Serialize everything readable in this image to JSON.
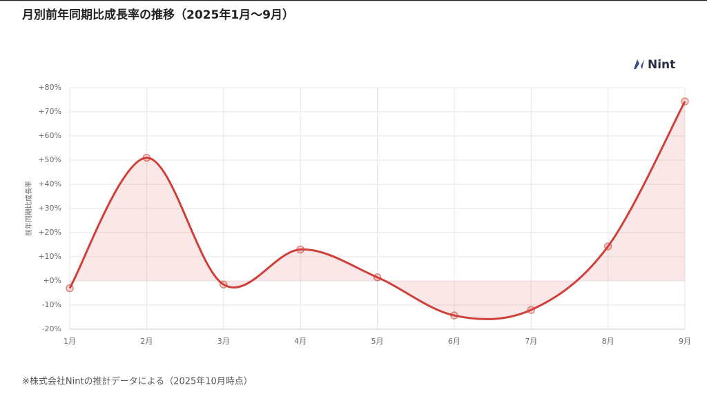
{
  "chart_data": {
    "type": "line",
    "title": "月別前年同期比成長率の推移（2025年1月〜9月）",
    "logo": "Nint",
    "ylabel": "前年同期比成長率",
    "categories": [
      "1月",
      "2月",
      "3月",
      "4月",
      "5月",
      "6月",
      "7月",
      "8月",
      "9月"
    ],
    "series": [
      {
        "name": "前年同期比成長率",
        "color": "#d0403a",
        "values": [
          -3,
          51,
          -1.5,
          13,
          1.5,
          -14.3,
          -12,
          14.3,
          74.3
        ]
      }
    ],
    "ylim": [
      -20,
      80
    ],
    "yticks": [
      {
        "value": -20,
        "label": "-20%"
      },
      {
        "value": -10,
        "label": "-10%"
      },
      {
        "value": 0,
        "label": "+0%"
      },
      {
        "value": 10,
        "label": "+10%"
      },
      {
        "value": 20,
        "label": "+20%"
      },
      {
        "value": 30,
        "label": "+30%"
      },
      {
        "value": 40,
        "label": "+40%"
      },
      {
        "value": 50,
        "label": "+50%"
      },
      {
        "value": 60,
        "label": "+60%"
      },
      {
        "value": 70,
        "label": "+70%"
      },
      {
        "value": 80,
        "label": "+80%"
      }
    ],
    "grid": true,
    "note": "※株式会社Nintの推計データによる（2025年10月時点）"
  }
}
